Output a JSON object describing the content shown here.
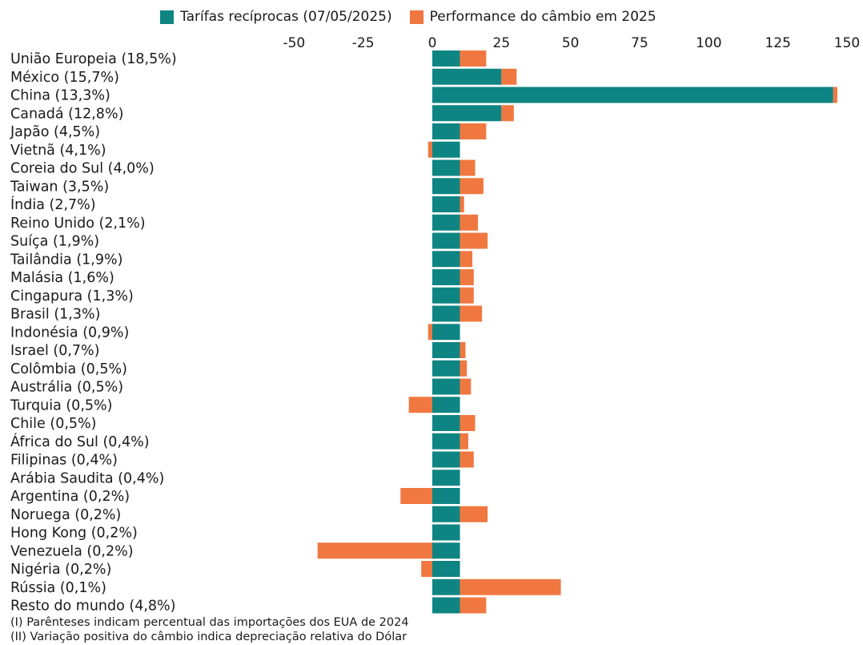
{
  "legend": {
    "items": [
      {
        "label": "Taríías recíprocas (07/05/2025)",
        "color": "#0e8582"
      },
      {
        "label": "Performance do câmbio em 2025",
        "color": "#f07840"
      }
    ]
  },
  "notes": [
    "(I) Parênteses indicam percentual das importações dos EUA de 2024",
    "(II) Variação positiva do câmbio indica depreciação relativa do Dólar"
  ],
  "chart_data": {
    "type": "bar",
    "orientation": "horizontal",
    "stacked": true,
    "xlim": [
      -50,
      150
    ],
    "xticks": [
      -50,
      -25,
      0,
      25,
      50,
      75,
      100,
      125,
      150
    ],
    "grid": false,
    "legend_position": "top",
    "categories": [
      "União Europeia (18,5%)",
      "México (15,7%)",
      "China (13,3%)",
      "Canadá (12,8%)",
      "Japão (4,5%)",
      "Vietnã (4,1%)",
      "Coreia do Sul (4,0%)",
      "Taiwan (3,5%)",
      "Índia (2,7%)",
      "Reino Unido (2,1%)",
      "Suíça (1,9%)",
      "Tailândia (1,9%)",
      "Malásia (1,6%)",
      "Cingapura (1,3%)",
      "Brasil (1,3%)",
      "Indonésia (0,9%)",
      "Israel (0,7%)",
      "Colômbia (0,5%)",
      "Austrália (0,5%)",
      "Turquia (0,5%)",
      "Chile (0,5%)",
      "África do Sul (0,4%)",
      "Filipinas (0,4%)",
      "Arábia Saudita (0,4%)",
      "Argentina (0,2%)",
      "Noruega (0,2%)",
      "Hong Kong (0,2%)",
      "Venezuela (0,2%)",
      "Nigéria (0,2%)",
      "Rússia (0,1%)",
      "Resto do mundo (4,8%)"
    ],
    "series": [
      {
        "name": "Tarífas recíprocas (07/05/2025)",
        "color": "#0e8582",
        "values": [
          10,
          25,
          145,
          25,
          10,
          10,
          10,
          10,
          10,
          10,
          10,
          10,
          10,
          10,
          10,
          10,
          10,
          10,
          10,
          10,
          10,
          10,
          10,
          10,
          10,
          10,
          10,
          10,
          10,
          10,
          10
        ]
      },
      {
        "name": "Performance do câmbio em 2025",
        "color": "#f07840",
        "values": [
          9.5,
          5.5,
          1.5,
          4.5,
          9.5,
          -1.5,
          5.5,
          8.5,
          1.5,
          6.5,
          10,
          4.5,
          5,
          5,
          8,
          -1.5,
          2,
          2.5,
          4,
          -8.5,
          5.5,
          3,
          5,
          0,
          -11.5,
          10,
          0,
          -41.5,
          -4,
          36.5,
          9.5
        ]
      }
    ]
  }
}
